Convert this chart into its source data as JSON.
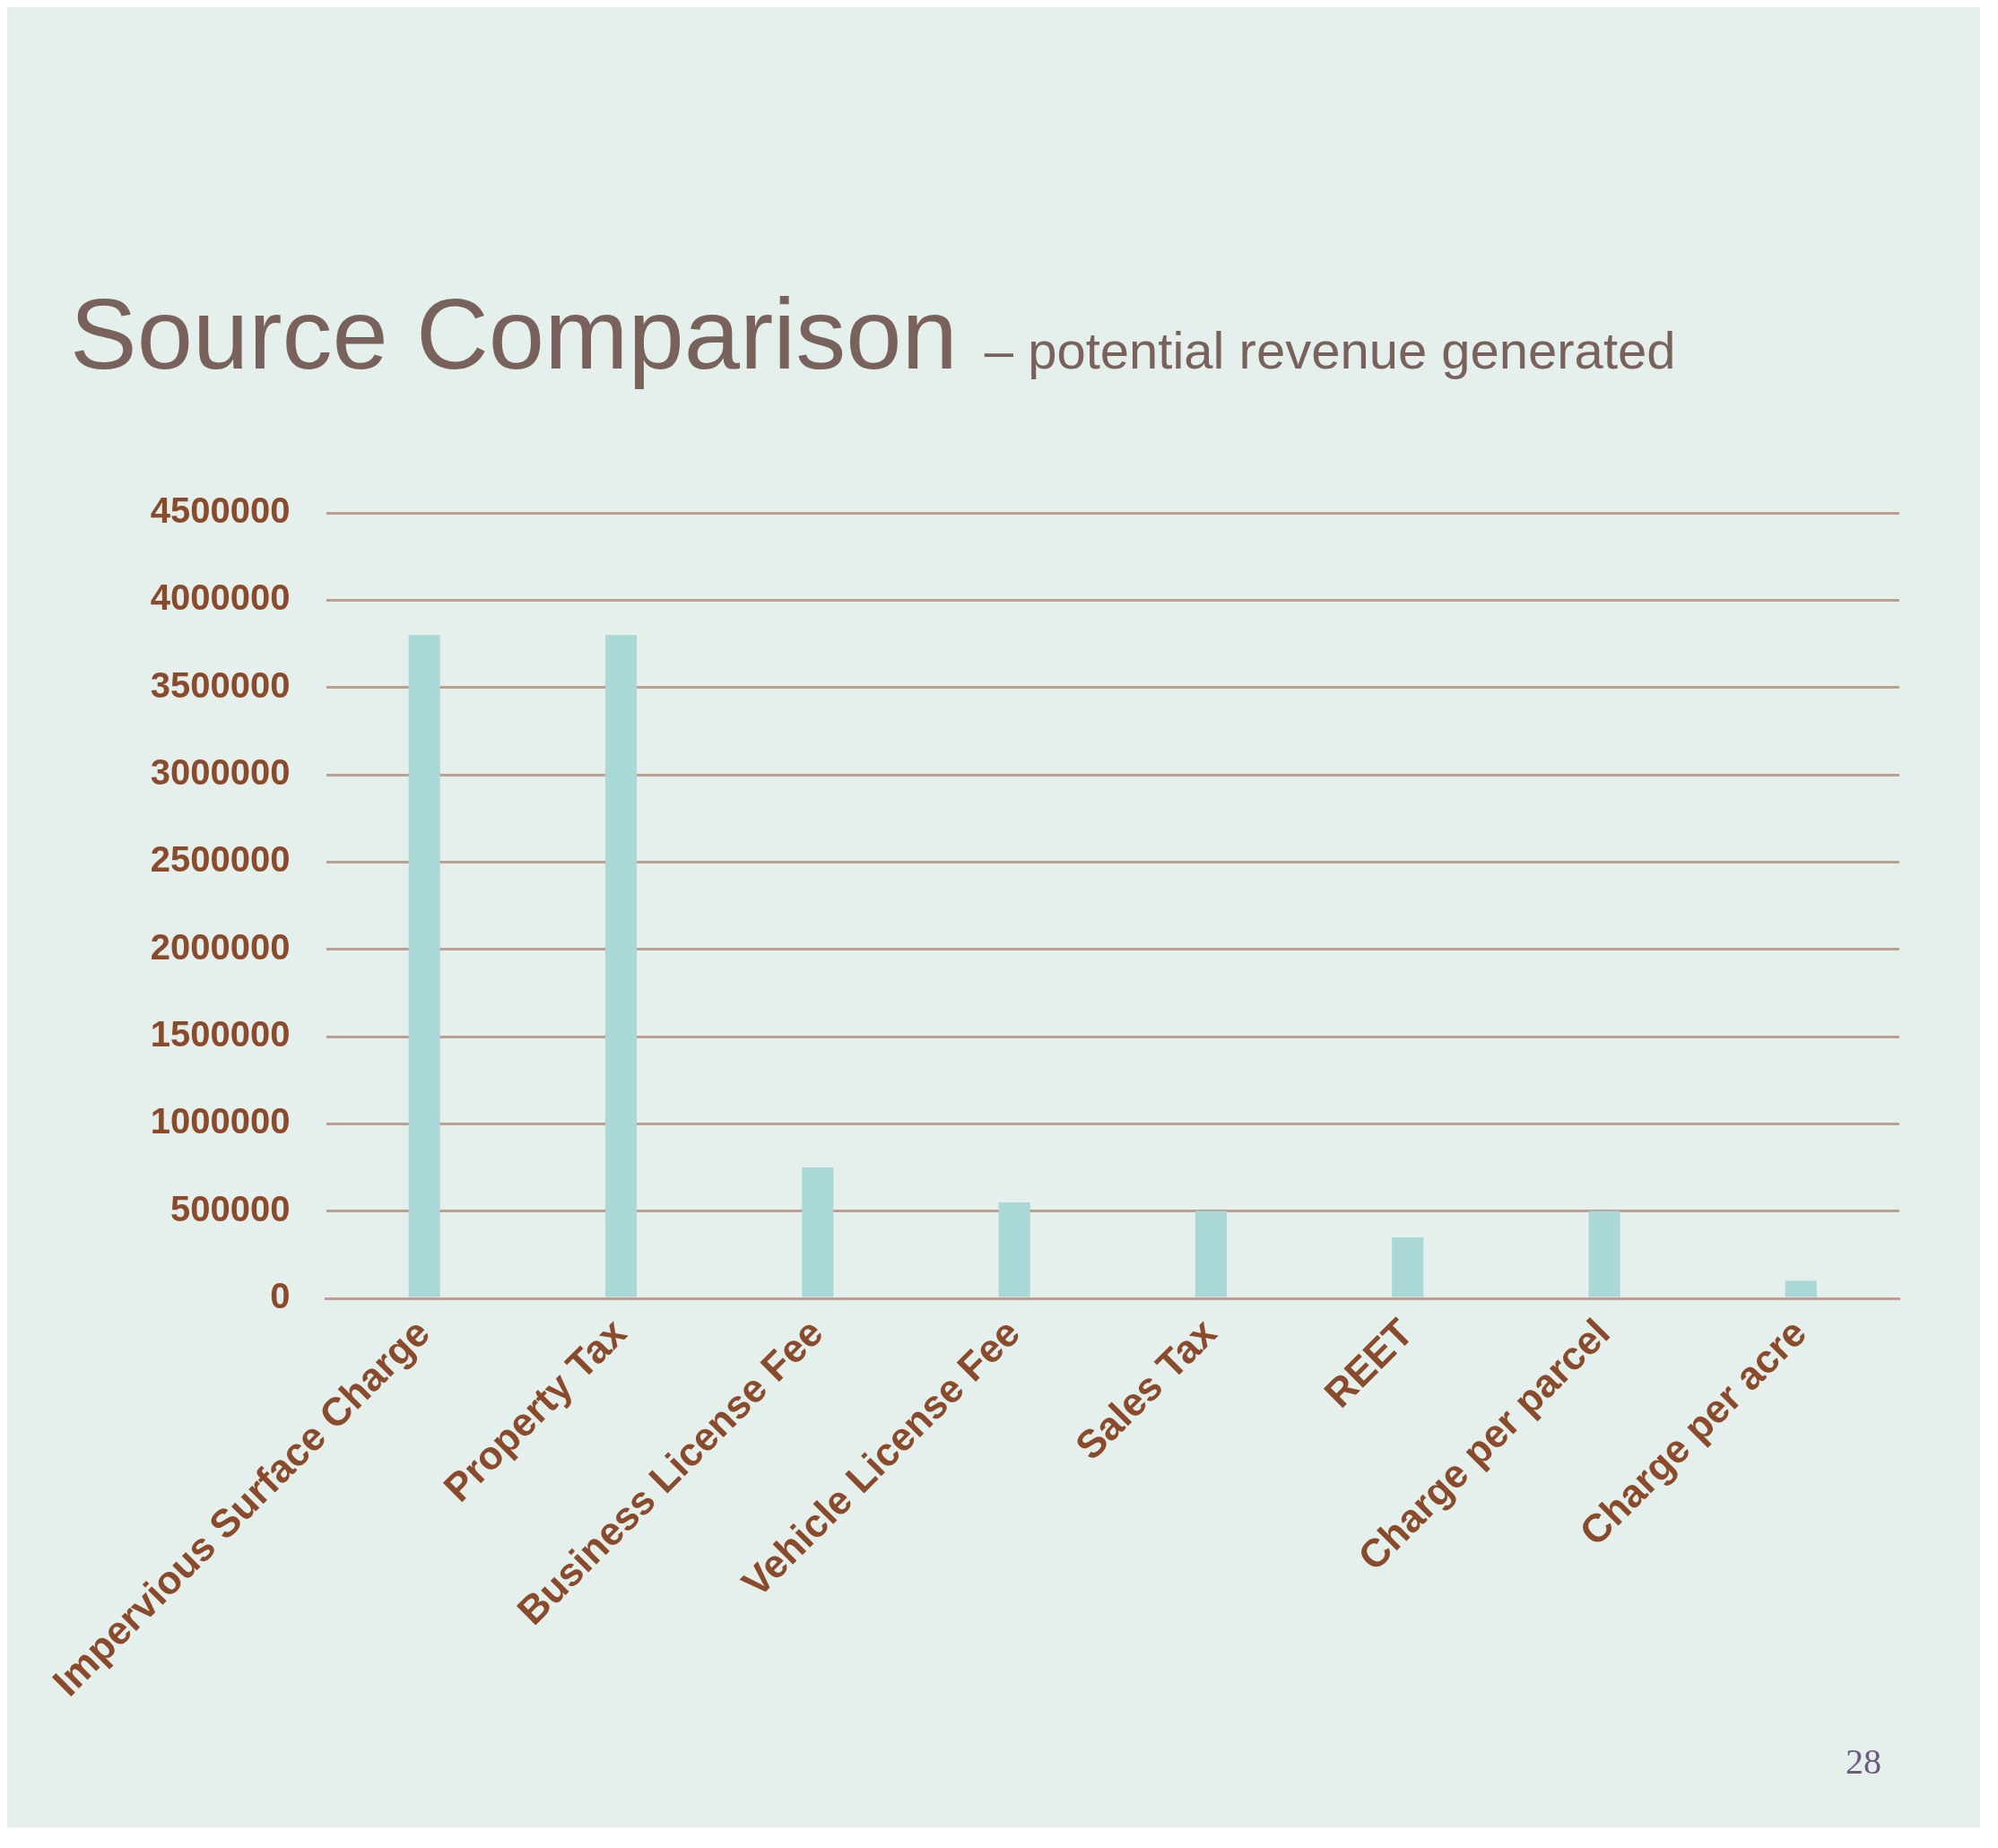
{
  "chart_data": {
    "type": "bar",
    "title": "Source Comparison",
    "subtitle": "– potential revenue generated",
    "categories": [
      "Impervious Surface Charge",
      "Property Tax",
      "Business License Fee",
      "Vehicle License Fee",
      "Sales Tax",
      "REET",
      "Charge per parcel",
      "Charge per acre"
    ],
    "values": [
      3800000,
      3800000,
      750000,
      550000,
      500000,
      350000,
      500000,
      100000
    ],
    "color": "#a9d8d6",
    "ylim": [
      0,
      4500000
    ],
    "yticks": [
      0,
      500000,
      1000000,
      1500000,
      2000000,
      2500000,
      3000000,
      3500000,
      4000000,
      4500000
    ],
    "grid": "y",
    "annotations": [
      "28"
    ]
  }
}
